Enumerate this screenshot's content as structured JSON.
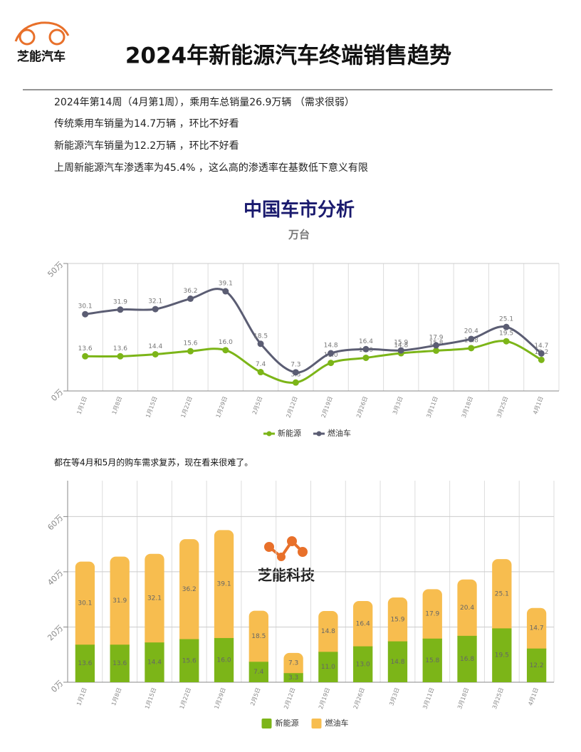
{
  "header": {
    "logo": "芝能汽车",
    "title": "2024年新能源汽车终端销售趋势"
  },
  "paragraphs": [
    "2024年第14周（4月第1周），乘用车总销量26.9万辆 （需求很弱）",
    "传统乘用车销量为14.7万辆 ，环比不好看",
    "新能源汽车销量为12.2万辆 ，环比不好看",
    "上周新能源汽车渗透率为45.4% ，这么高的渗透率在基数低下意义有限"
  ],
  "chart_data": [
    {
      "type": "line",
      "title": "中国车市分析",
      "subtitle": "万台",
      "categories": [
        "1月1日",
        "1月8日",
        "1月15日",
        "1月22日",
        "1月29日",
        "2月5日",
        "2月12日",
        "2月19日",
        "2月26日",
        "3月3日",
        "3月11日",
        "3月18日",
        "3月25日",
        "4月1日"
      ],
      "series": [
        {
          "name": "新能源",
          "color": "#7cb518",
          "values": [
            13.6,
            13.6,
            14.4,
            15.6,
            16.0,
            7.4,
            3.3,
            11.0,
            13.0,
            14.8,
            15.8,
            16.8,
            19.5,
            12.2
          ],
          "value_labels": [
            "13.6",
            "13.6",
            "14.4",
            "15.6",
            "16.0",
            "7.4",
            "3.3",
            "11.0",
            "13.0",
            "14.8",
            "15.8",
            "16.8",
            "19.5",
            "12.2"
          ]
        },
        {
          "name": "燃油车",
          "color": "#5b5d73",
          "values": [
            30.1,
            31.9,
            32.1,
            36.2,
            39.1,
            18.5,
            7.3,
            14.8,
            16.4,
            15.9,
            17.9,
            20.4,
            25.1,
            14.7
          ],
          "value_labels": [
            "30.1",
            "31.9",
            "32.1",
            "36.2",
            "39.1",
            "18.5",
            "7.3",
            "14.8",
            "16.4",
            "15.9",
            "17.9",
            "20.4",
            "25.1",
            "14.7"
          ]
        }
      ],
      "ylim": [
        0,
        50
      ],
      "yticks": [
        {
          "value": 0,
          "label": "0万"
        },
        {
          "value": 50,
          "label": "50万"
        }
      ],
      "grid": true,
      "legend": "bottom"
    },
    {
      "type": "stacked_bar",
      "note": "都在等4月和5月的购车需求复苏，现在看来很难了。",
      "watermark": "芝能科技",
      "categories": [
        "1月1日",
        "1月8日",
        "1月15日",
        "1月22日",
        "1月29日",
        "2月5日",
        "2月12日",
        "2月19日",
        "2月26日",
        "3月3日",
        "3月11日",
        "3月18日",
        "3月25日",
        "4月1日"
      ],
      "series": [
        {
          "name": "新能源",
          "color": "#7cb518",
          "values": [
            13.6,
            13.6,
            14.4,
            15.6,
            16.0,
            7.4,
            3.3,
            11.0,
            13.0,
            14.8,
            15.8,
            16.8,
            19.5,
            12.2
          ],
          "value_labels": [
            "13.6",
            "13.6",
            "14.4",
            "15.6",
            "16.0",
            "7.4",
            "3.3",
            "11.0",
            "13.0",
            "14.8",
            "15.8",
            "16.8",
            "19.5",
            "12.2"
          ]
        },
        {
          "name": "燃油车",
          "color": "#f7bd4f",
          "values": [
            30.1,
            31.9,
            32.1,
            36.2,
            39.1,
            18.5,
            7.3,
            14.8,
            16.4,
            15.9,
            17.9,
            20.4,
            25.1,
            14.7
          ],
          "value_labels": [
            "30.1",
            "31.9",
            "32.1",
            "36.2",
            "39.1",
            "18.5",
            "7.3",
            "14.8",
            "16.4",
            "15.9",
            "17.9",
            "20.4",
            "25.1",
            "14.7"
          ]
        }
      ],
      "ylim": [
        0,
        73
      ],
      "yticks": [
        {
          "value": 0,
          "label": "0万"
        },
        {
          "value": 20,
          "label": "20万"
        },
        {
          "value": 40,
          "label": "40万"
        },
        {
          "value": 60,
          "label": "60万"
        }
      ],
      "grid": true,
      "legend": "bottom"
    }
  ]
}
